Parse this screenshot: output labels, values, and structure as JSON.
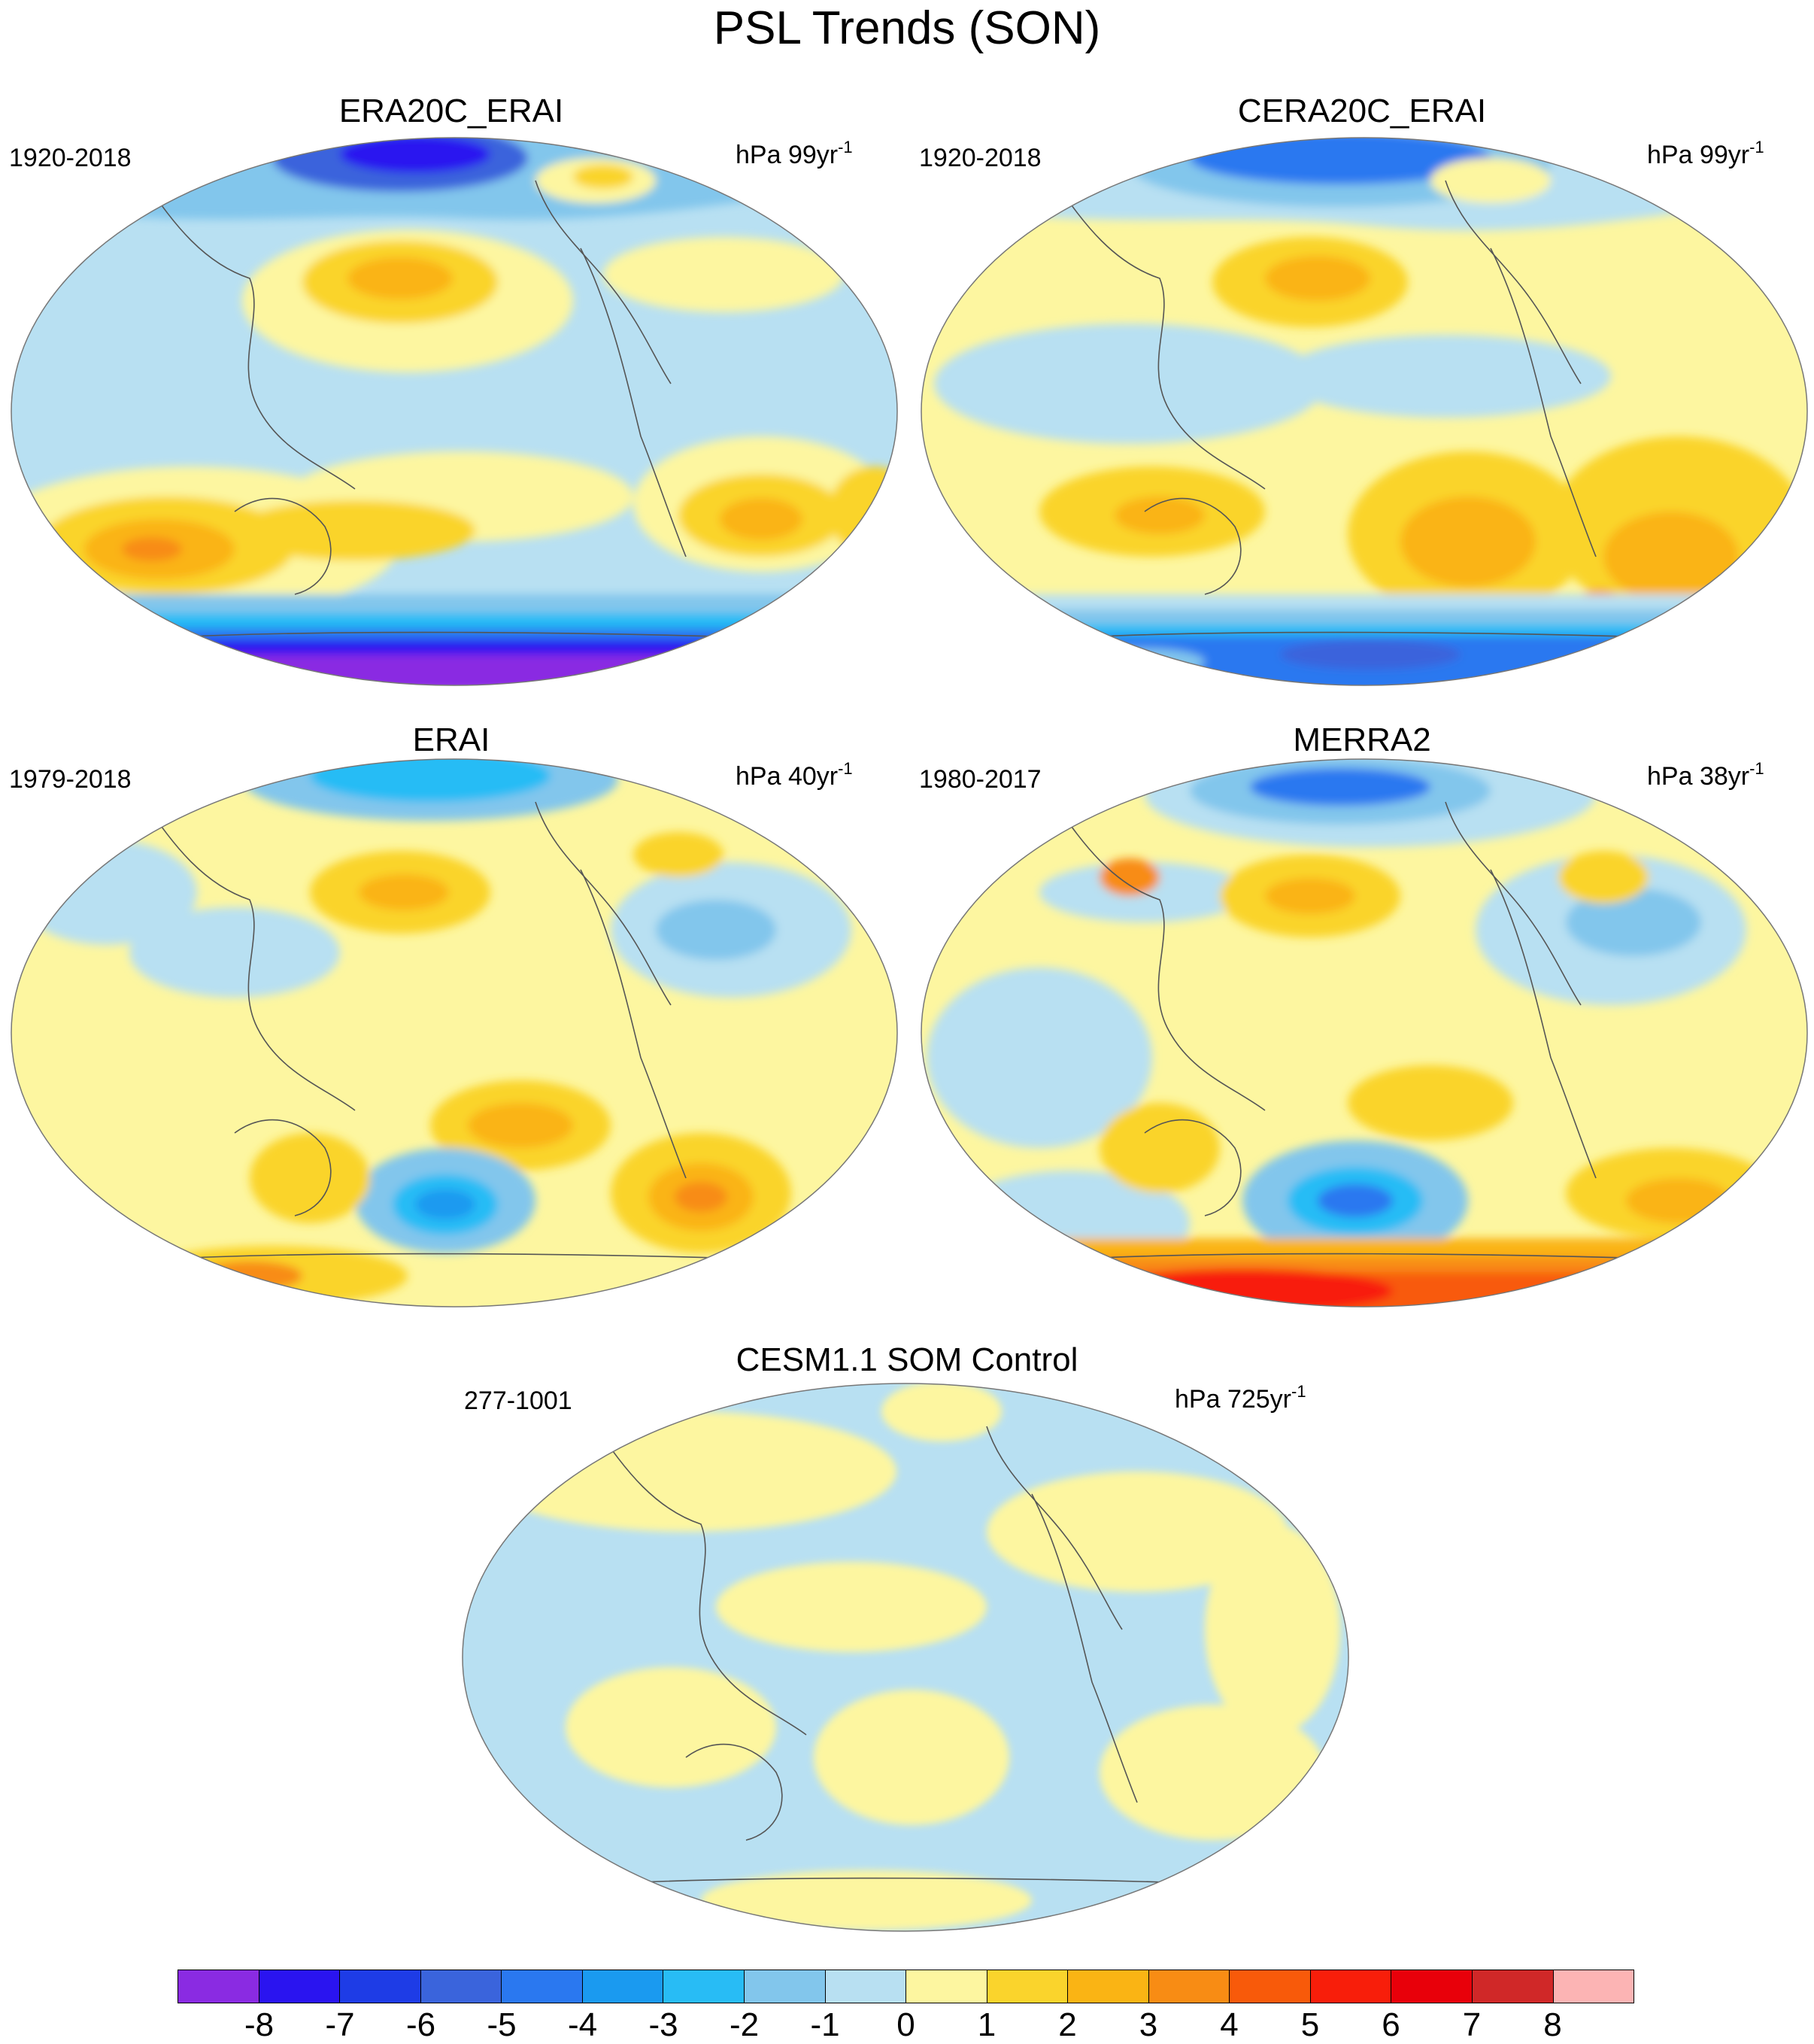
{
  "title": "PSL Trends (SON)",
  "panels": [
    {
      "id": "era20c_erai",
      "title": "ERA20C_ERAI",
      "period": "1920-2018",
      "units_prefix": "hPa 99yr",
      "units_exp": "-1"
    },
    {
      "id": "cera20c_erai",
      "title": "CERA20C_ERAI",
      "period": "1920-2018",
      "units_prefix": "hPa 99yr",
      "units_exp": "-1"
    },
    {
      "id": "erai",
      "title": "ERAI",
      "period": "1979-2018",
      "units_prefix": "hPa 40yr",
      "units_exp": "-1"
    },
    {
      "id": "merra2",
      "title": "MERRA2",
      "period": "1980-2017",
      "units_prefix": "hPa 38yr",
      "units_exp": "-1"
    },
    {
      "id": "cesm",
      "title": "CESM1.1 SOM Control",
      "period": "277-1001",
      "units_prefix": "hPa 725yr",
      "units_exp": "-1"
    }
  ],
  "colorbar": {
    "colors": [
      "#8a2be2",
      "#2a14f0",
      "#1e3ce6",
      "#3a64dc",
      "#2a78f0",
      "#1a9af0",
      "#28bcf5",
      "#82c6ec",
      "#b8e0f2",
      "#fdf6a0",
      "#fad42c",
      "#fab414",
      "#f88c14",
      "#f85a0a",
      "#f81e0a",
      "#e8000a",
      "#d02828",
      "#fcb4b4"
    ],
    "labels": [
      "-8",
      "-7",
      "-6",
      "-5",
      "-4",
      "-3",
      "-2",
      "-1",
      "0",
      "1",
      "2",
      "3",
      "4",
      "5",
      "6",
      "7",
      "8"
    ]
  }
}
